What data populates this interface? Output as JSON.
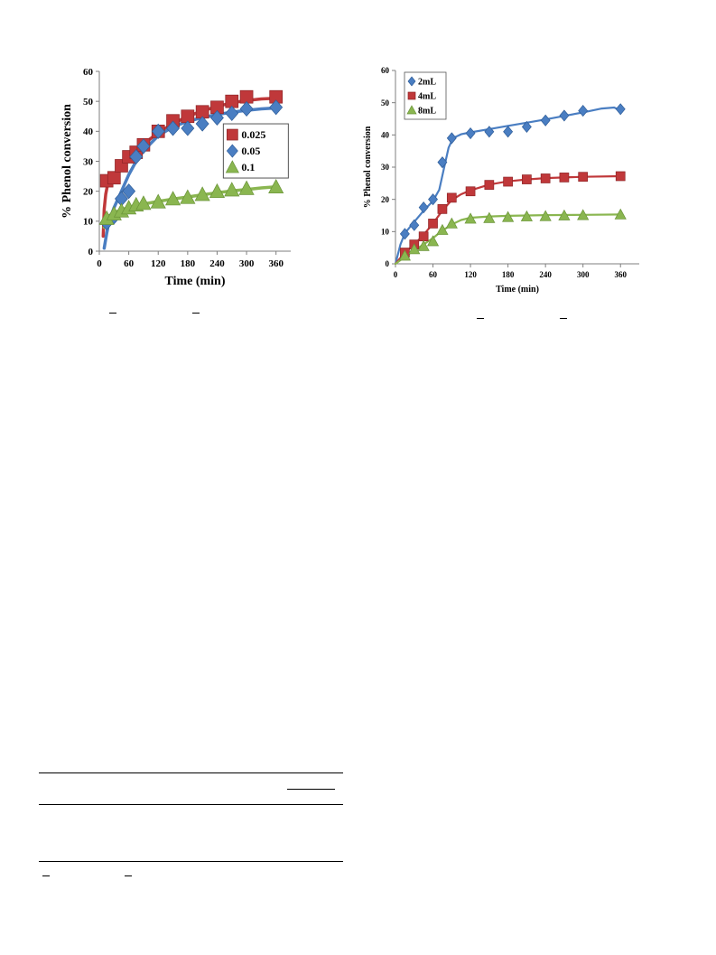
{
  "colors": {
    "red": "#c0383a",
    "blue": "#4a7ec2",
    "green": "#8ab650",
    "axis": "#7f7f7f"
  },
  "chart_data": [
    {
      "type": "line",
      "title": "",
      "xlabel": "Time (min)",
      "ylabel": "% Phenol conversion",
      "xlim": [
        0,
        390
      ],
      "ylim": [
        0,
        60
      ],
      "xticks": [
        0,
        60,
        120,
        180,
        240,
        300,
        360
      ],
      "yticks": [
        0,
        10,
        20,
        30,
        40,
        50,
        60
      ],
      "grid": false,
      "legend_position": "right",
      "series": [
        {
          "name": "0.025",
          "color": "red",
          "marker": "square",
          "points": [
            [
              15,
              23.5
            ],
            [
              30,
              24.5
            ],
            [
              45,
              28.5
            ],
            [
              60,
              31.5
            ],
            [
              75,
              33
            ],
            [
              90,
              35.5
            ],
            [
              120,
              40
            ],
            [
              150,
              43.5
            ],
            [
              180,
              45
            ],
            [
              210,
              46.5
            ],
            [
              240,
              48
            ],
            [
              270,
              50
            ],
            [
              300,
              51.5
            ],
            [
              360,
              51.5
            ]
          ],
          "fit": [
            [
              8,
              5
            ],
            [
              10,
              14
            ],
            [
              13,
              19
            ],
            [
              16,
              21.5
            ],
            [
              20,
              23
            ],
            [
              30,
              25.5
            ],
            [
              45,
              28.5
            ],
            [
              60,
              31
            ],
            [
              80,
              34
            ],
            [
              100,
              37
            ],
            [
              120,
              39.5
            ],
            [
              150,
              42.5
            ],
            [
              180,
              45
            ],
            [
              210,
              46.8
            ],
            [
              240,
              48.3
            ],
            [
              270,
              49.5
            ],
            [
              300,
              50.3
            ],
            [
              330,
              50.8
            ],
            [
              360,
              51
            ]
          ]
        },
        {
          "name": "0.05",
          "color": "blue",
          "marker": "diamond",
          "points": [
            [
              15,
              9.5
            ],
            [
              30,
              11.5
            ],
            [
              45,
              17.5
            ],
            [
              60,
              20
            ],
            [
              75,
              31.5
            ],
            [
              90,
              35
            ],
            [
              120,
              40
            ],
            [
              150,
              41
            ],
            [
              180,
              41
            ],
            [
              210,
              42.5
            ],
            [
              240,
              44.5
            ],
            [
              270,
              46
            ],
            [
              300,
              47.5
            ],
            [
              360,
              48
            ]
          ],
          "fit": [
            [
              10,
              1
            ],
            [
              15,
              6
            ],
            [
              20,
              10
            ],
            [
              30,
              14.5
            ],
            [
              45,
              20
            ],
            [
              60,
              25.5
            ],
            [
              75,
              30
            ],
            [
              90,
              33.5
            ],
            [
              120,
              38.5
            ],
            [
              150,
              41.5
            ],
            [
              180,
              43.3
            ],
            [
              210,
              44.6
            ],
            [
              240,
              45.6
            ],
            [
              270,
              46.4
            ],
            [
              300,
              47
            ],
            [
              330,
              47.5
            ],
            [
              360,
              47.8
            ]
          ]
        },
        {
          "name": "0.1",
          "color": "green",
          "marker": "triangle",
          "points": [
            [
              15,
              11
            ],
            [
              30,
              12.5
            ],
            [
              45,
              13.5
            ],
            [
              60,
              14.5
            ],
            [
              75,
              15.5
            ],
            [
              90,
              16
            ],
            [
              120,
              16.5
            ],
            [
              150,
              17.5
            ],
            [
              180,
              18
            ],
            [
              210,
              19
            ],
            [
              240,
              20
            ],
            [
              270,
              20.5
            ],
            [
              300,
              21
            ],
            [
              360,
              21.5
            ]
          ],
          "fit": [
            [
              10,
              8
            ],
            [
              15,
              10.5
            ],
            [
              20,
              11.8
            ],
            [
              30,
              12.8
            ],
            [
              45,
              13.8
            ],
            [
              60,
              14.6
            ],
            [
              90,
              15.7
            ],
            [
              120,
              16.6
            ],
            [
              150,
              17.4
            ],
            [
              180,
              18.1
            ],
            [
              210,
              18.8
            ],
            [
              240,
              19.5
            ],
            [
              270,
              20.1
            ],
            [
              300,
              20.6
            ],
            [
              330,
              21.1
            ],
            [
              360,
              21.5
            ]
          ]
        }
      ]
    },
    {
      "type": "line",
      "title": "",
      "xlabel": "Time (min)",
      "ylabel": "% Phenol conversion",
      "xlim": [
        0,
        390
      ],
      "ylim": [
        0,
        60
      ],
      "xticks": [
        0,
        60,
        120,
        180,
        240,
        300,
        360
      ],
      "yticks": [
        0,
        10,
        20,
        30,
        40,
        50,
        60
      ],
      "grid": false,
      "legend_position": "top-left",
      "series": [
        {
          "name": "2mL",
          "color": "blue",
          "marker": "diamond",
          "points": [
            [
              15,
              9.3
            ],
            [
              30,
              12
            ],
            [
              45,
              17.5
            ],
            [
              60,
              20
            ],
            [
              75,
              31.5
            ],
            [
              90,
              39
            ],
            [
              120,
              40.5
            ],
            [
              150,
              41
            ],
            [
              180,
              41
            ],
            [
              210,
              42.5
            ],
            [
              240,
              44.5
            ],
            [
              270,
              46
            ],
            [
              300,
              47.5
            ],
            [
              360,
              48
            ]
          ],
          "fit": [
            [
              0,
              0
            ],
            [
              8,
              6
            ],
            [
              15,
              9.5
            ],
            [
              30,
              13
            ],
            [
              45,
              16.5
            ],
            [
              60,
              19.5
            ],
            [
              70,
              23
            ],
            [
              78,
              30
            ],
            [
              85,
              36
            ],
            [
              92,
              39
            ],
            [
              105,
              40.2
            ],
            [
              120,
              40.8
            ],
            [
              150,
              41.8
            ],
            [
              180,
              42.8
            ],
            [
              210,
              43.8
            ],
            [
              240,
              44.8
            ],
            [
              270,
              45.9
            ],
            [
              300,
              47
            ],
            [
              330,
              48.2
            ],
            [
              350,
              48.5
            ],
            [
              360,
              47.5
            ]
          ]
        },
        {
          "name": "4mL",
          "color": "red",
          "marker": "square",
          "points": [
            [
              15,
              3.5
            ],
            [
              30,
              6
            ],
            [
              45,
              8.5
            ],
            [
              60,
              12.5
            ],
            [
              75,
              17
            ],
            [
              90,
              20.5
            ],
            [
              120,
              22.5
            ],
            [
              150,
              24.5
            ],
            [
              180,
              25.5
            ],
            [
              210,
              26.2
            ],
            [
              240,
              26.5
            ],
            [
              270,
              26.8
            ],
            [
              300,
              27
            ],
            [
              360,
              27.2
            ]
          ],
          "fit": [
            [
              0,
              0
            ],
            [
              15,
              3.5
            ],
            [
              30,
              6
            ],
            [
              45,
              9
            ],
            [
              60,
              12.5
            ],
            [
              75,
              16.5
            ],
            [
              90,
              19.8
            ],
            [
              105,
              21.6
            ],
            [
              120,
              22.8
            ],
            [
              150,
              24.6
            ],
            [
              180,
              25.6
            ],
            [
              210,
              26.2
            ],
            [
              240,
              26.6
            ],
            [
              270,
              26.8
            ],
            [
              300,
              27
            ],
            [
              360,
              27.2
            ]
          ]
        },
        {
          "name": "8mL",
          "color": "green",
          "marker": "triangle",
          "points": [
            [
              15,
              2.5
            ],
            [
              30,
              4.5
            ],
            [
              45,
              5.5
            ],
            [
              60,
              7
            ],
            [
              75,
              10.5
            ],
            [
              90,
              12.5
            ],
            [
              120,
              14
            ],
            [
              150,
              14.2
            ],
            [
              180,
              14.5
            ],
            [
              210,
              14.7
            ],
            [
              240,
              14.8
            ],
            [
              270,
              15
            ],
            [
              300,
              15.1
            ],
            [
              360,
              15.3
            ]
          ],
          "fit": [
            [
              0,
              0
            ],
            [
              15,
              2.2
            ],
            [
              30,
              4.2
            ],
            [
              45,
              6
            ],
            [
              60,
              8
            ],
            [
              75,
              10.3
            ],
            [
              90,
              12.2
            ],
            [
              105,
              13.6
            ],
            [
              120,
              14.3
            ],
            [
              150,
              14.7
            ],
            [
              180,
              14.9
            ],
            [
              240,
              15.1
            ],
            [
              300,
              15.2
            ],
            [
              360,
              15.3
            ]
          ]
        }
      ]
    }
  ]
}
